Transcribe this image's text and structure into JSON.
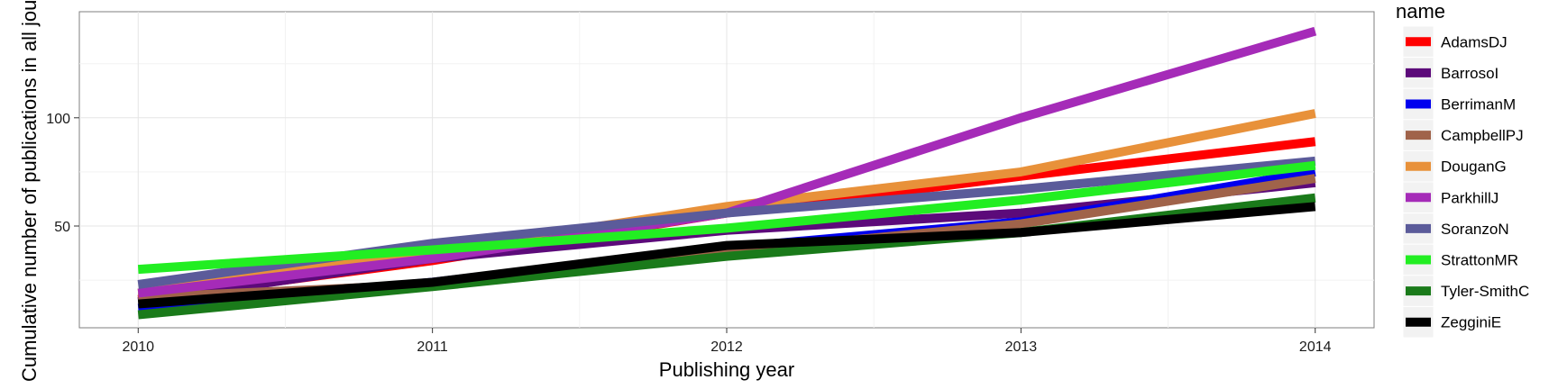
{
  "chart_data": {
    "type": "line",
    "title": "",
    "xlabel": "Publishing year",
    "ylabel": "Cumulative number of publications in all journals",
    "x": [
      2010,
      2011,
      2012,
      2013,
      2014
    ],
    "xlim": [
      2009.8,
      2014.2
    ],
    "ylim": [
      3,
      149
    ],
    "y_ticks": [
      50,
      100
    ],
    "grid": true,
    "legend_title": "name",
    "legend_position": "right",
    "series": [
      {
        "name": "AdamsDJ",
        "color": "#ff0000",
        "values": [
          16,
          34,
          56,
          73,
          89
        ]
      },
      {
        "name": "BarrosoI",
        "color": "#5c0a7a",
        "values": [
          15,
          35,
          48,
          56,
          70
        ]
      },
      {
        "name": "BerrimanM",
        "color": "#0000ee",
        "values": [
          12,
          24,
          40,
          52,
          75
        ]
      },
      {
        "name": "CampbellPJ",
        "color": "#a0634a",
        "values": [
          17,
          23,
          38,
          51,
          72
        ]
      },
      {
        "name": "DouganG",
        "color": "#e8913a",
        "values": [
          19,
          38,
          59,
          75,
          102
        ]
      },
      {
        "name": "ParkhillJ",
        "color": "#a52bb8",
        "values": [
          19,
          35,
          56,
          100,
          140
        ]
      },
      {
        "name": "SoranzoN",
        "color": "#5b5b9a",
        "values": [
          23,
          42,
          56,
          67,
          80
        ]
      },
      {
        "name": "StrattonMR",
        "color": "#22ee22",
        "values": [
          30,
          39,
          49,
          62,
          78
        ]
      },
      {
        "name": "Tyler-SmithC",
        "color": "#1a7a1a",
        "values": [
          9,
          22,
          36,
          47,
          63
        ]
      },
      {
        "name": "ZegginiE",
        "color": "#000000",
        "values": [
          14,
          24,
          41,
          47,
          59
        ]
      }
    ]
  }
}
